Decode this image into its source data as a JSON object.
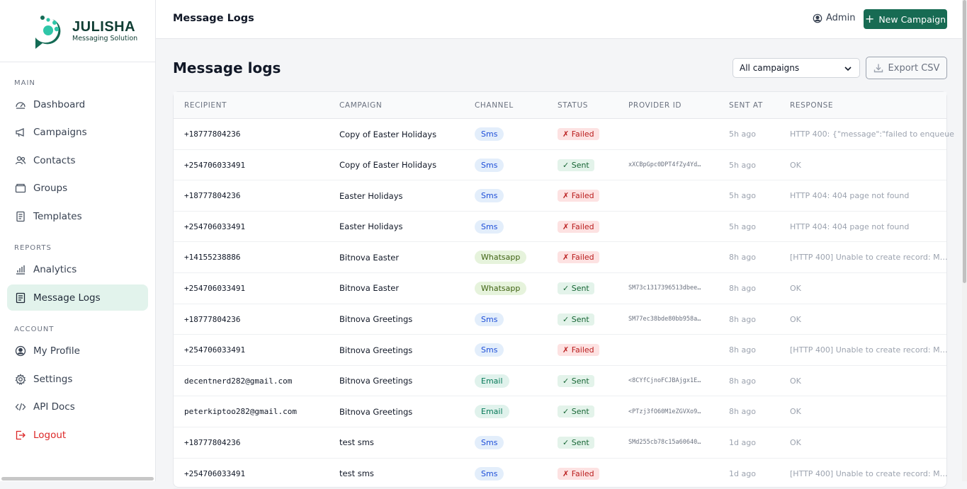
{
  "brand": {
    "name": "JULISHA",
    "tagline": "Messaging Solution"
  },
  "sidebar": {
    "sections": [
      {
        "label": "MAIN"
      },
      {
        "label": "REPORTS"
      },
      {
        "label": "ACCOUNT"
      }
    ],
    "items": [
      {
        "label": "Dashboard",
        "icon": "dashboard-gauge-icon"
      },
      {
        "label": "Campaigns",
        "icon": "megaphone-icon"
      },
      {
        "label": "Contacts",
        "icon": "users-icon"
      },
      {
        "label": "Groups",
        "icon": "folder-icon"
      },
      {
        "label": "Templates",
        "icon": "document-icon"
      },
      {
        "label": "Analytics",
        "icon": "bar-chart-icon"
      },
      {
        "label": "Message Logs",
        "icon": "log-list-icon",
        "active": true
      },
      {
        "label": "My Profile",
        "icon": "user-circle-icon"
      },
      {
        "label": "Settings",
        "icon": "gear-icon"
      },
      {
        "label": "API Docs",
        "icon": "code-icon"
      },
      {
        "label": "Logout",
        "icon": "logout-icon"
      }
    ]
  },
  "topbar": {
    "title": "Message Logs",
    "user": "Admin",
    "new_campaign": "New Campaign"
  },
  "main": {
    "title": "Message logs",
    "filter": {
      "selected": "All campaigns"
    },
    "export_label": "Export CSV"
  },
  "table": {
    "columns": [
      "RECIPIENT",
      "CAMPAIGN",
      "CHANNEL",
      "STATUS",
      "PROVIDER ID",
      "SENT AT",
      "RESPONSE"
    ],
    "rows": [
      {
        "recipient": "+18777804236",
        "campaign": "Copy of Easter Holidays",
        "channel": "Sms",
        "status": "✗ Failed",
        "status_kind": "failed",
        "provider_id": "",
        "sent_at": "5h ago",
        "response": "HTTP 400: {\"message\":\"failed to enqueue"
      },
      {
        "recipient": "+254706033491",
        "campaign": "Copy of Easter Holidays",
        "channel": "Sms",
        "status": "✓ Sent",
        "status_kind": "sent",
        "provider_id": "xXCBpGpc0DPT4fZy4Yd…",
        "sent_at": "5h ago",
        "response": "OK"
      },
      {
        "recipient": "+18777804236",
        "campaign": "Easter Holidays",
        "channel": "Sms",
        "status": "✗ Failed",
        "status_kind": "failed",
        "provider_id": "",
        "sent_at": "5h ago",
        "response": "HTTP 404: 404 page not found"
      },
      {
        "recipient": "+254706033491",
        "campaign": "Easter Holidays",
        "channel": "Sms",
        "status": "✗ Failed",
        "status_kind": "failed",
        "provider_id": "",
        "sent_at": "5h ago",
        "response": "HTTP 404: 404 page not found"
      },
      {
        "recipient": "+14155238886",
        "campaign": "Bitnova Easter",
        "channel": "Whatsapp",
        "status": "✗ Failed",
        "status_kind": "failed",
        "provider_id": "",
        "sent_at": "8h ago",
        "response": "[HTTP 400] Unable to create record: M…"
      },
      {
        "recipient": "+254706033491",
        "campaign": "Bitnova Easter",
        "channel": "Whatsapp",
        "status": "✓ Sent",
        "status_kind": "sent",
        "provider_id": "SM73c1317396513dbee…",
        "sent_at": "8h ago",
        "response": "OK"
      },
      {
        "recipient": "+18777804236",
        "campaign": "Bitnova Greetings",
        "channel": "Sms",
        "status": "✓ Sent",
        "status_kind": "sent",
        "provider_id": "SM77ec38bde80bb958a…",
        "sent_at": "8h ago",
        "response": "OK"
      },
      {
        "recipient": "+254706033491",
        "campaign": "Bitnova Greetings",
        "channel": "Sms",
        "status": "✗ Failed",
        "status_kind": "failed",
        "provider_id": "",
        "sent_at": "8h ago",
        "response": "[HTTP 400] Unable to create record: M…"
      },
      {
        "recipient": "decentnerd282@gmail.com",
        "campaign": "Bitnova Greetings",
        "channel": "Email",
        "status": "✓ Sent",
        "status_kind": "sent",
        "provider_id": "<8CYfCjnoFCJBAjgx1E…",
        "sent_at": "8h ago",
        "response": "OK"
      },
      {
        "recipient": "peterkiptoo282@gmail.com",
        "campaign": "Bitnova Greetings",
        "channel": "Email",
        "status": "✓ Sent",
        "status_kind": "sent",
        "provider_id": "<PTzj3fO60M1eZGVXo9…",
        "sent_at": "8h ago",
        "response": "OK"
      },
      {
        "recipient": "+18777804236",
        "campaign": "test sms",
        "channel": "Sms",
        "status": "✓ Sent",
        "status_kind": "sent",
        "provider_id": "SMd255cb78c15a60640…",
        "sent_at": "1d ago",
        "response": "OK"
      },
      {
        "recipient": "+254706033491",
        "campaign": "test sms",
        "channel": "Sms",
        "status": "✗ Failed",
        "status_kind": "failed",
        "provider_id": "",
        "sent_at": "1d ago",
        "response": "[HTTP 400] Unable to create record: M…"
      }
    ]
  },
  "colors": {
    "accent": "#176b53",
    "active_bg": "#e2f3ec",
    "danger": "#dc2626"
  }
}
